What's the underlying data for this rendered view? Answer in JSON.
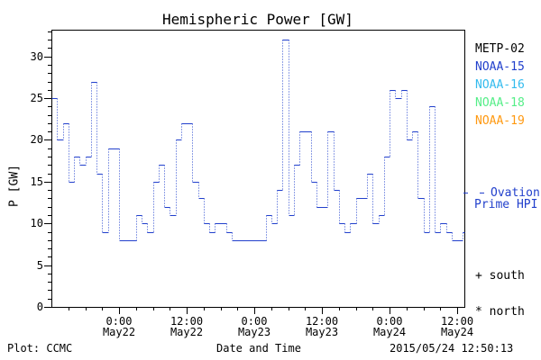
{
  "header": {
    "title": "Hemispheric Power [GW]"
  },
  "chart_data": {
    "type": "line",
    "style": "step-dotted",
    "title": "Hemispheric Power [GW]",
    "xlabel": "Date and Time",
    "ylabel": "P [GW]",
    "ylim": [
      0,
      33.2
    ],
    "y_major_ticks": [
      0,
      5,
      10,
      15,
      20,
      25,
      30
    ],
    "x_start": "2015/05/21 12:00",
    "hours_per_step": 1,
    "line_color": "#2240cc",
    "series": [
      {
        "name": "Ovation Prime HPI",
        "values": [
          25,
          20,
          22,
          15,
          18,
          17,
          18,
          27,
          16,
          9,
          19,
          19,
          8,
          8,
          8,
          11,
          10,
          9,
          15,
          17,
          12,
          11,
          20,
          22,
          22,
          15,
          13,
          10,
          9,
          10,
          10,
          9,
          8,
          8,
          8,
          8,
          8,
          8,
          11,
          10,
          14,
          32,
          11,
          17,
          21,
          21,
          15,
          12,
          12,
          21,
          14,
          10,
          9,
          10,
          13,
          13,
          16,
          10,
          11,
          18,
          26,
          25,
          26,
          20,
          21,
          13,
          9,
          24,
          9,
          10,
          9,
          8,
          8,
          9
        ]
      }
    ],
    "x_ticks": [
      {
        "hour": 12,
        "time": "0:00",
        "date": "May22"
      },
      {
        "hour": 24,
        "time": "12:00",
        "date": "May22"
      },
      {
        "hour": 36,
        "time": "0:00",
        "date": "May23"
      },
      {
        "hour": 48,
        "time": "12:00",
        "date": "May23"
      },
      {
        "hour": 60,
        "time": "0:00",
        "date": "May24"
      },
      {
        "hour": 72,
        "time": "12:00",
        "date": "May24"
      }
    ]
  },
  "legend": {
    "satellites": [
      {
        "label": "METP-02",
        "color": "#000000"
      },
      {
        "label": "NOAA-15",
        "color": "#2240cc"
      },
      {
        "label": "NOAA-16",
        "color": "#33bbee"
      },
      {
        "label": "NOAA-18",
        "color": "#55ee88"
      },
      {
        "label": "NOAA-19",
        "color": "#ff9911"
      }
    ],
    "ovation": {
      "line1": "Ovation",
      "line2": "Prime HPI",
      "color": "#2240cc"
    },
    "south": "+ south",
    "north": "* north"
  },
  "footer": {
    "left": "Plot: CCMC",
    "right": "2015/05/24 12:50:13"
  }
}
